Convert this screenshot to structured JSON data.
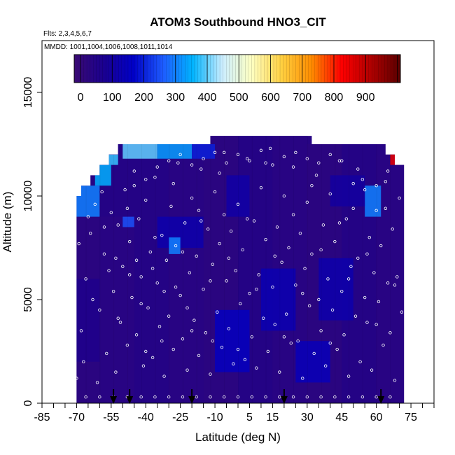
{
  "chart_data": {
    "type": "heatmap",
    "title": "ATOM3 Southbound HNO3_CIT",
    "flights_note": "Flts: 2,3,4,5,6,7",
    "dates_note": "MMDD: 1001,1004,1006,1008,1011,1014",
    "xlabel": "Latitude (deg N)",
    "ylabel": "Altitude (m)",
    "xlim": [
      -85,
      85
    ],
    "ylim": [
      0,
      17500
    ],
    "x_ticks": [
      -85,
      -70,
      -55,
      -40,
      -25,
      -10,
      5,
      15,
      30,
      45,
      60,
      75
    ],
    "x_minor_ticks": [
      -80,
      -75,
      -65,
      -60,
      -50,
      -45,
      -35,
      -30,
      -20,
      -15,
      -5,
      0,
      10,
      20,
      25,
      35,
      40,
      50,
      55,
      65,
      70,
      80,
      85
    ],
    "y_ticks": [
      0,
      5000,
      10000,
      15000
    ],
    "colorbar": {
      "ticks": [
        0,
        100,
        200,
        300,
        400,
        500,
        600,
        700,
        800,
        900
      ],
      "range": [
        -20,
        1010
      ],
      "colors": [
        "#3a0a72",
        "#1a0090",
        "#0000c8",
        "#1e5cff",
        "#00b4ff",
        "#cceeff",
        "#ffffc0",
        "#ffd040",
        "#ff8c00",
        "#ff0000",
        "#b00000",
        "#5a0000"
      ]
    },
    "profile_arrows_lat": [
      -54,
      -47,
      -20,
      20,
      62
    ],
    "coverage": {
      "lat": [
        -70,
        -68,
        -64,
        -60,
        -56,
        -52,
        -48,
        -44,
        -40,
        -36,
        -32,
        -28,
        -24,
        -20,
        -16,
        -12,
        -8,
        -4,
        0,
        4,
        8,
        12,
        16,
        20,
        24,
        28,
        32,
        36,
        40,
        44,
        48,
        52,
        56,
        60,
        64,
        68,
        72
      ],
      "top_alt": [
        10000,
        10500,
        11000,
        11500,
        12000,
        12500,
        12500,
        12500,
        12500,
        12500,
        12500,
        12500,
        12500,
        12500,
        12500,
        12900,
        12900,
        12900,
        12900,
        12900,
        12900,
        12900,
        12900,
        12900,
        12900,
        12900,
        12500,
        12500,
        12500,
        12500,
        12500,
        12500,
        12500,
        12500,
        12000,
        11500,
        10500
      ]
    },
    "cells": [
      {
        "lat": [
          -72,
          -60
        ],
        "alt": [
          0,
          9000
        ],
        "value": 20
      },
      {
        "lat": [
          -60,
          -45
        ],
        "alt": [
          0,
          9000
        ],
        "value": 30
      },
      {
        "lat": [
          -45,
          -30
        ],
        "alt": [
          0,
          12500
        ],
        "value": 40
      },
      {
        "lat": [
          -30,
          -15
        ],
        "alt": [
          0,
          12500
        ],
        "value": 30
      },
      {
        "lat": [
          -15,
          0
        ],
        "alt": [
          0,
          12900
        ],
        "value": 20
      },
      {
        "lat": [
          0,
          15
        ],
        "alt": [
          0,
          12900
        ],
        "value": 40
      },
      {
        "lat": [
          15,
          30
        ],
        "alt": [
          0,
          12900
        ],
        "value": 30
      },
      {
        "lat": [
          30,
          45
        ],
        "alt": [
          0,
          12500
        ],
        "value": 20
      },
      {
        "lat": [
          45,
          60
        ],
        "alt": [
          0,
          12500
        ],
        "value": 40
      },
      {
        "lat": [
          60,
          72
        ],
        "alt": [
          0,
          12000
        ],
        "value": 30
      },
      {
        "lat": [
          -60,
          -45
        ],
        "alt": [
          9000,
          12500
        ],
        "value": 40
      },
      {
        "lat": [
          -72,
          -60
        ],
        "alt": [
          9000,
          10500
        ],
        "value": 300
      },
      {
        "lat": [
          -62,
          -55
        ],
        "alt": [
          10500,
          11500
        ],
        "value": 350
      },
      {
        "lat": [
          -57,
          -52
        ],
        "alt": [
          11500,
          12000
        ],
        "value": 380
      },
      {
        "lat": [
          -50,
          -35
        ],
        "alt": [
          11800,
          12500
        ],
        "value": 400
      },
      {
        "lat": [
          -35,
          -20
        ],
        "alt": [
          11800,
          12500
        ],
        "value": 330
      },
      {
        "lat": [
          -20,
          -10
        ],
        "alt": [
          11800,
          12500
        ],
        "value": 200
      },
      {
        "lat": [
          -35,
          -15
        ],
        "alt": [
          7500,
          9000
        ],
        "value": 120
      },
      {
        "lat": [
          -10,
          5
        ],
        "alt": [
          1500,
          4500
        ],
        "value": 150
      },
      {
        "lat": [
          10,
          25
        ],
        "alt": [
          3500,
          6500
        ],
        "value": 130
      },
      {
        "lat": [
          25,
          40
        ],
        "alt": [
          1000,
          3000
        ],
        "value": 140
      },
      {
        "lat": [
          35,
          50
        ],
        "alt": [
          4000,
          7000
        ],
        "value": 120
      },
      {
        "lat": [
          55,
          62
        ],
        "alt": [
          9000,
          10500
        ],
        "value": 300
      },
      {
        "lat": [
          66,
          70
        ],
        "alt": [
          11500,
          12200
        ],
        "value": 850
      },
      {
        "lat": [
          -30,
          -25
        ],
        "alt": [
          7200,
          8000
        ],
        "value": 300
      },
      {
        "lat": [
          -50,
          -45
        ],
        "alt": [
          8500,
          9000
        ],
        "value": 250
      },
      {
        "lat": [
          -70,
          -60
        ],
        "alt": [
          2000,
          6000
        ],
        "value": 60
      },
      {
        "lat": [
          -5,
          5
        ],
        "alt": [
          9000,
          11000
        ],
        "value": 110
      },
      {
        "lat": [
          40,
          55
        ],
        "alt": [
          9500,
          11000
        ],
        "value": 100
      }
    ],
    "sample_points": [
      [
        -70,
        1200
      ],
      [
        -68,
        3500
      ],
      [
        -66,
        6000
      ],
      [
        -64,
        8200
      ],
      [
        -62,
        9600
      ],
      [
        -60,
        4500
      ],
      [
        -58,
        7200
      ],
      [
        -57,
        2400
      ],
      [
        -55,
        9200
      ],
      [
        -54,
        5400
      ],
      [
        -53,
        1500
      ],
      [
        -52,
        8600
      ],
      [
        -51,
        3900
      ],
      [
        -50,
        6600
      ],
      [
        -49,
        10300
      ],
      [
        -48,
        2800
      ],
      [
        -47,
        7800
      ],
      [
        -46,
        5100
      ],
      [
        -45,
        11200
      ],
      [
        -44,
        3300
      ],
      [
        -43,
        8900
      ],
      [
        -42,
        6100
      ],
      [
        -41,
        1800
      ],
      [
        -40,
        9800
      ],
      [
        -39,
        4600
      ],
      [
        -38,
        7300
      ],
      [
        -37,
        2200
      ],
      [
        -36,
        10900
      ],
      [
        -35,
        5800
      ],
      [
        -34,
        3700
      ],
      [
        -33,
        8100
      ],
      [
        -32,
        1300
      ],
      [
        -31,
        6900
      ],
      [
        -30,
        4200
      ],
      [
        -29,
        9500
      ],
      [
        -28,
        2600
      ],
      [
        -27,
        7600
      ],
      [
        -26,
        11600
      ],
      [
        -25,
        5200
      ],
      [
        -24,
        3100
      ],
      [
        -23,
        8700
      ],
      [
        -22,
        1600
      ],
      [
        -21,
        6300
      ],
      [
        -20,
        9900
      ],
      [
        -19,
        4000
      ],
      [
        -18,
        7100
      ],
      [
        -17,
        2300
      ],
      [
        -16,
        11300
      ],
      [
        -15,
        5500
      ],
      [
        -14,
        3400
      ],
      [
        -13,
        8400
      ],
      [
        -12,
        1400
      ],
      [
        -11,
        6700
      ],
      [
        -10,
        10200
      ],
      [
        -9,
        4400
      ],
      [
        -8,
        7700
      ],
      [
        -7,
        2700
      ],
      [
        -6,
        12100
      ],
      [
        -5,
        5900
      ],
      [
        -4,
        3600
      ],
      [
        -3,
        8300
      ],
      [
        -2,
        1900
      ],
      [
        -1,
        6400
      ],
      [
        0,
        9600
      ],
      [
        1,
        4800
      ],
      [
        2,
        7400
      ],
      [
        3,
        2100
      ],
      [
        4,
        11800
      ],
      [
        5,
        5300
      ],
      [
        6,
        3200
      ],
      [
        7,
        8800
      ],
      [
        8,
        1700
      ],
      [
        9,
        6200
      ],
      [
        10,
        10400
      ],
      [
        11,
        4100
      ],
      [
        12,
        7900
      ],
      [
        13,
        2500
      ],
      [
        14,
        12300
      ],
      [
        15,
        5600
      ],
      [
        16,
        3800
      ],
      [
        17,
        8500
      ],
      [
        18,
        1500
      ],
      [
        19,
        6800
      ],
      [
        20,
        10000
      ],
      [
        21,
        4300
      ],
      [
        22,
        7500
      ],
      [
        23,
        2900
      ],
      [
        24,
        11400
      ],
      [
        25,
        5700
      ],
      [
        26,
        3000
      ],
      [
        27,
        8200
      ],
      [
        28,
        1200
      ],
      [
        29,
        6500
      ],
      [
        30,
        9700
      ],
      [
        31,
        4700
      ],
      [
        32,
        7200
      ],
      [
        33,
        2400
      ],
      [
        34,
        11000
      ],
      [
        35,
        5000
      ],
      [
        36,
        3500
      ],
      [
        37,
        8600
      ],
      [
        38,
        1800
      ],
      [
        39,
        6000
      ],
      [
        40,
        10100
      ],
      [
        41,
        4500
      ],
      [
        42,
        7800
      ],
      [
        43,
        2600
      ],
      [
        44,
        11700
      ],
      [
        45,
        5400
      ],
      [
        46,
        3300
      ],
      [
        47,
        8900
      ],
      [
        48,
        1300
      ],
      [
        49,
        6600
      ],
      [
        50,
        9400
      ],
      [
        51,
        4200
      ],
      [
        52,
        7000
      ],
      [
        53,
        2000
      ],
      [
        54,
        10800
      ],
      [
        55,
        5100
      ],
      [
        56,
        3900
      ],
      [
        57,
        8000
      ],
      [
        58,
        1600
      ],
      [
        59,
        6300
      ],
      [
        60,
        9300
      ],
      [
        61,
        4900
      ],
      [
        62,
        7600
      ],
      [
        63,
        2800
      ],
      [
        64,
        10700
      ],
      [
        65,
        5800
      ],
      [
        66,
        3400
      ],
      [
        67,
        8400
      ],
      [
        68,
        1100
      ],
      [
        69,
        6100
      ],
      [
        70,
        9900
      ],
      [
        71,
        4400
      ],
      [
        -69,
        7700
      ],
      [
        -67,
        2000
      ],
      [
        -65,
        9000
      ],
      [
        -63,
        5000
      ],
      [
        -61,
        1000
      ],
      [
        -59,
        10200
      ],
      [
        -56,
        6400
      ],
      [
        -52,
        4100
      ],
      [
        -48,
        9400
      ],
      [
        -44,
        6900
      ],
      [
        -40,
        2500
      ],
      [
        -36,
        8000
      ],
      [
        -32,
        5400
      ],
      [
        -28,
        10600
      ],
      [
        -24,
        7300
      ],
      [
        -20,
        3500
      ],
      [
        -16,
        8800
      ],
      [
        -12,
        5900
      ],
      [
        -8,
        11100
      ],
      [
        -4,
        7000
      ],
      [
        0,
        2600
      ],
      [
        4,
        8900
      ],
      [
        8,
        5500
      ],
      [
        12,
        11600
      ],
      [
        16,
        7100
      ],
      [
        20,
        3200
      ],
      [
        24,
        9100
      ],
      [
        28,
        5300
      ],
      [
        32,
        10500
      ],
      [
        36,
        7400
      ],
      [
        40,
        2900
      ],
      [
        44,
        8700
      ],
      [
        48,
        6000
      ],
      [
        52,
        11300
      ],
      [
        56,
        7200
      ],
      [
        60,
        3800
      ],
      [
        64,
        9400
      ],
      [
        68,
        5700
      ],
      [
        -66,
        300
      ],
      [
        -60,
        300
      ],
      [
        -54,
        300
      ],
      [
        -48,
        300
      ],
      [
        -42,
        300
      ],
      [
        -36,
        300
      ],
      [
        -30,
        300
      ],
      [
        -24,
        300
      ],
      [
        -18,
        300
      ],
      [
        -12,
        300
      ],
      [
        -6,
        300
      ],
      [
        0,
        300
      ],
      [
        6,
        300
      ],
      [
        12,
        300
      ],
      [
        18,
        300
      ],
      [
        24,
        300
      ],
      [
        30,
        300
      ],
      [
        36,
        300
      ],
      [
        42,
        300
      ],
      [
        48,
        300
      ],
      [
        54,
        300
      ],
      [
        60,
        300
      ],
      [
        66,
        300
      ],
      [
        -45,
        10500
      ],
      [
        -40,
        10800
      ],
      [
        -35,
        11400
      ],
      [
        -30,
        11700
      ],
      [
        -25,
        12000
      ],
      [
        -20,
        11500
      ],
      [
        -15,
        11800
      ],
      [
        -10,
        12100
      ],
      [
        -5,
        11600
      ],
      [
        0,
        12000
      ],
      [
        5,
        11700
      ],
      [
        10,
        12200
      ],
      [
        15,
        11500
      ],
      [
        20,
        11900
      ],
      [
        25,
        12100
      ],
      [
        30,
        11800
      ],
      [
        35,
        11600
      ],
      [
        40,
        12000
      ],
      [
        45,
        11700
      ],
      [
        50,
        10600
      ],
      [
        55,
        10300
      ],
      [
        60,
        10500
      ],
      [
        65,
        11200
      ],
      [
        -58,
        8500
      ],
      [
        -53,
        7000
      ],
      [
        -47,
        6200
      ],
      [
        -42,
        4800
      ],
      [
        -37,
        6500
      ],
      [
        -33,
        3000
      ],
      [
        -27,
        5600
      ],
      [
        -22,
        4600
      ],
      [
        -17,
        9300
      ],
      [
        -11,
        3000
      ],
      [
        -6,
        9100
      ]
    ]
  }
}
